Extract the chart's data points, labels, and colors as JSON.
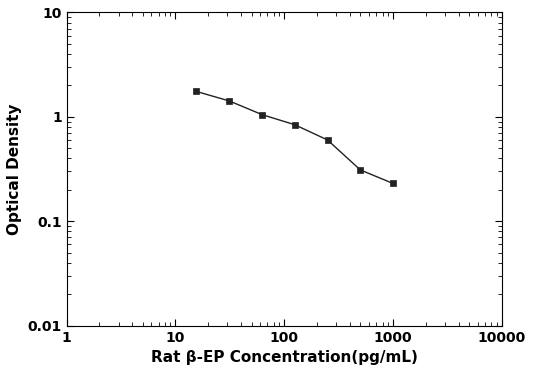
{
  "x": [
    15.6,
    31.25,
    62.5,
    125,
    250,
    500,
    1000
  ],
  "y": [
    1.75,
    1.42,
    1.05,
    0.84,
    0.6,
    0.31,
    0.23
  ],
  "xlabel": "Rat β-EP Concentration(pg/mL)",
  "ylabel": "Optical Density",
  "xlim": [
    1,
    10000
  ],
  "ylim": [
    0.01,
    10
  ],
  "color": "#222222",
  "marker": "s",
  "markersize": 5,
  "linewidth": 1.0,
  "background_color": "#ffffff",
  "xlabel_fontsize": 11,
  "ylabel_fontsize": 11,
  "tick_fontsize": 10,
  "ytick_labels": [
    "0.01",
    "0.1",
    "1",
    "10"
  ],
  "ytick_values": [
    0.01,
    0.1,
    1,
    10
  ],
  "xtick_labels": [
    "1",
    "10",
    "100",
    "1000",
    "10000"
  ],
  "xtick_values": [
    1,
    10,
    100,
    1000,
    10000
  ]
}
